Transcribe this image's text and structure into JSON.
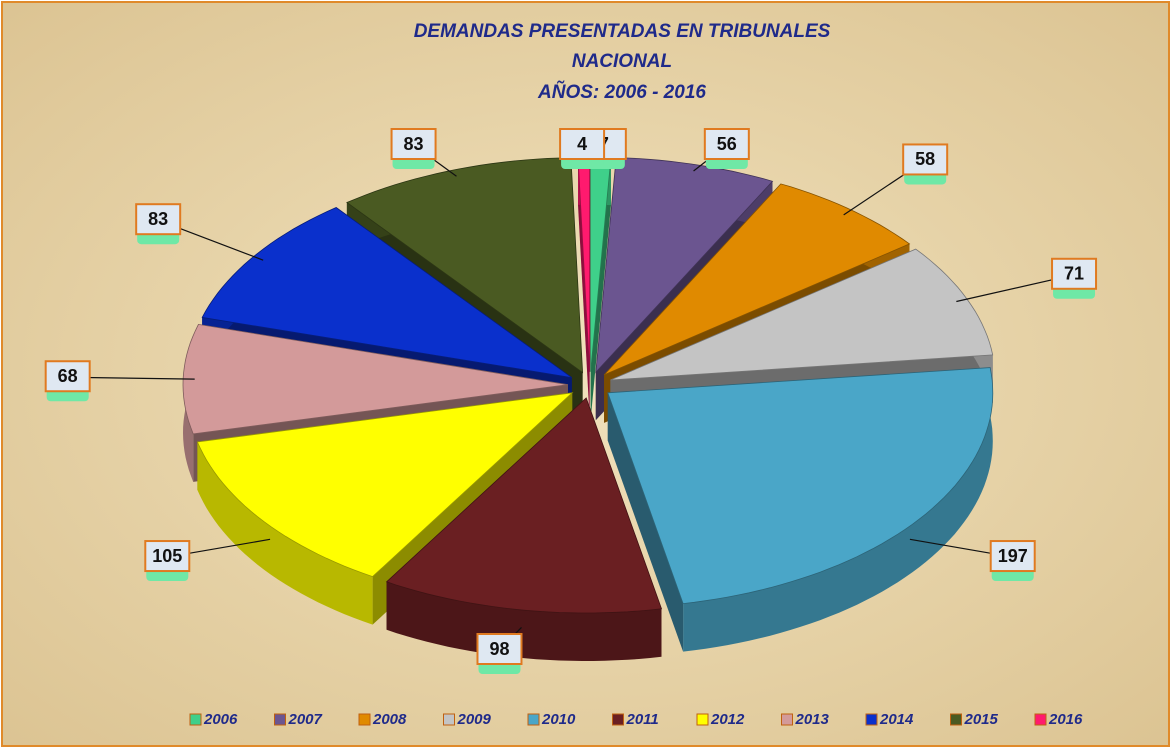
{
  "chart_data": {
    "type": "pie",
    "title": [
      "DEMANDAS PRESENTADAS  EN  TRIBUNALES",
      "NACIONAL",
      "AÑOS: 2006 - 2016"
    ],
    "categories": [
      "2006",
      "2007",
      "2008",
      "2009",
      "2010",
      "2011",
      "2012",
      "2013",
      "2014",
      "2015",
      "2016"
    ],
    "values": [
      7,
      56,
      58,
      71,
      197,
      98,
      105,
      68,
      83,
      83,
      4
    ],
    "colors": [
      "#3fd08a",
      "#6b5590",
      "#e08a00",
      "#c4c4c4",
      "#4aa6c8",
      "#6a1f22",
      "#ffff00",
      "#d39a9a",
      "#0a30cc",
      "#4a5a22",
      "#ff1a6e"
    ],
    "legend": "bottom"
  }
}
